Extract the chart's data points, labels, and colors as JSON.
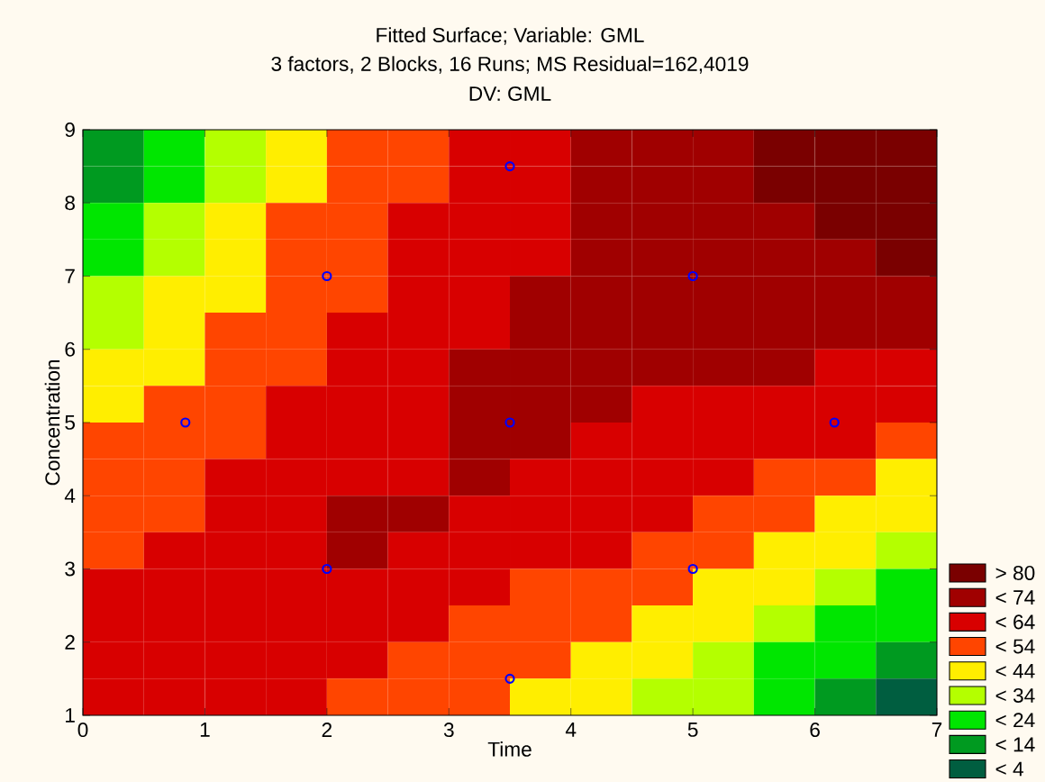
{
  "chart_data": {
    "type": "heatmap",
    "title": "Fitted Surface; Variable: GML",
    "subtitle": "3 factors, 2 Blocks, 16 Runs; MS Residual=162,4019",
    "annotations": [
      "DV: GML"
    ],
    "xlabel": "Time",
    "ylabel": "Concentration",
    "xlim": [
      0,
      7
    ],
    "ylim": [
      1,
      9
    ],
    "xticks": [
      0,
      1,
      2,
      3,
      4,
      5,
      6,
      7
    ],
    "yticks": [
      1,
      2,
      3,
      4,
      5,
      6,
      7,
      8,
      9
    ],
    "x": [
      0.25,
      0.75,
      1.25,
      1.75,
      2.25,
      2.75,
      3.25,
      3.75,
      4.25,
      4.75,
      5.25,
      5.75,
      6.25,
      6.75
    ],
    "y": [
      8.75,
      8.25,
      7.75,
      7.25,
      6.75,
      6.25,
      5.75,
      5.25,
      4.75,
      4.25,
      3.75,
      3.25,
      2.75,
      2.25,
      1.75,
      1.25
    ],
    "cells": [
      [
        9,
        19,
        29,
        39,
        49,
        49,
        59,
        59,
        69,
        69,
        69,
        85,
        85,
        85
      ],
      [
        9,
        19,
        29,
        39,
        49,
        49,
        59,
        59,
        69,
        69,
        69,
        85,
        85,
        85
      ],
      [
        19,
        29,
        39,
        49,
        49,
        59,
        59,
        59,
        69,
        69,
        69,
        69,
        85,
        85
      ],
      [
        19,
        29,
        39,
        49,
        49,
        59,
        59,
        59,
        69,
        69,
        69,
        69,
        69,
        85
      ],
      [
        29,
        39,
        39,
        49,
        49,
        59,
        59,
        69,
        69,
        69,
        69,
        69,
        69,
        69
      ],
      [
        29,
        39,
        49,
        49,
        59,
        59,
        59,
        69,
        69,
        69,
        69,
        69,
        69,
        69
      ],
      [
        39,
        39,
        49,
        49,
        59,
        59,
        69,
        69,
        69,
        69,
        69,
        69,
        59,
        59
      ],
      [
        39,
        49,
        49,
        59,
        59,
        59,
        69,
        69,
        69,
        59,
        59,
        59,
        59,
        59
      ],
      [
        49,
        49,
        49,
        59,
        59,
        59,
        69,
        69,
        59,
        59,
        59,
        59,
        59,
        49
      ],
      [
        49,
        49,
        59,
        59,
        59,
        59,
        69,
        59,
        59,
        59,
        59,
        49,
        49,
        39
      ],
      [
        49,
        49,
        59,
        59,
        69,
        69,
        59,
        59,
        59,
        59,
        49,
        49,
        39,
        39
      ],
      [
        49,
        59,
        59,
        59,
        69,
        59,
        59,
        59,
        59,
        49,
        49,
        39,
        39,
        29
      ],
      [
        59,
        59,
        59,
        59,
        59,
        59,
        59,
        49,
        49,
        49,
        39,
        39,
        29,
        19
      ],
      [
        59,
        59,
        59,
        59,
        59,
        59,
        49,
        49,
        49,
        39,
        39,
        29,
        19,
        19
      ],
      [
        59,
        59,
        59,
        59,
        59,
        49,
        49,
        49,
        39,
        39,
        29,
        19,
        19,
        9
      ],
      [
        59,
        59,
        59,
        59,
        49,
        49,
        49,
        39,
        39,
        29,
        29,
        19,
        9,
        2
      ]
    ],
    "cticks": [
      {
        "value": 80,
        "label": "> 80"
      },
      {
        "value": 74,
        "label": "< 74"
      },
      {
        "value": 64,
        "label": "< 64"
      },
      {
        "value": 54,
        "label": "< 54"
      },
      {
        "value": 44,
        "label": "< 44"
      },
      {
        "value": 34,
        "label": "< 34"
      },
      {
        "value": 24,
        "label": "< 24"
      },
      {
        "value": 14,
        "label": "< 14"
      },
      {
        "value": 4,
        "label": "< 4"
      }
    ],
    "colors": [
      "#7a0000",
      "#a00000",
      "#d80000",
      "#ff4500",
      "#ffee00",
      "#b4ff00",
      "#00e600",
      "#009a20",
      "#005e40"
    ],
    "series": [
      {
        "type": "scatter",
        "color": "#0000ff",
        "marker": "circle",
        "x": [
          0.84,
          2,
          2,
          3.5,
          3.5,
          3.5,
          5,
          5,
          6.16
        ],
        "values": [
          5,
          7,
          3,
          8.5,
          5,
          1.5,
          7,
          3,
          5
        ]
      }
    ]
  }
}
